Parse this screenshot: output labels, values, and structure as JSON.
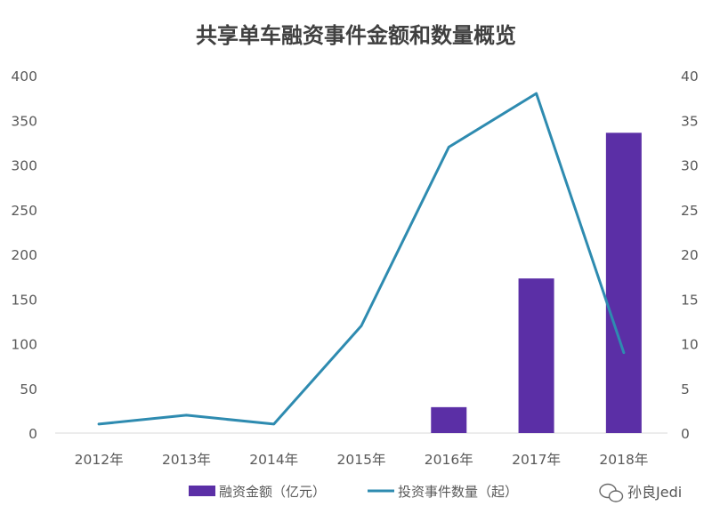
{
  "chart_data": {
    "type": "bar",
    "title": "共享单车融资事件金额和数量概览",
    "categories": [
      "2012年",
      "2013年",
      "2014年",
      "2015年",
      "2016年",
      "2017年",
      "2018年"
    ],
    "y_left": {
      "range": [
        0,
        400
      ],
      "ticks": [
        "0",
        "50",
        "100",
        "150",
        "200",
        "250",
        "300",
        "350",
        "400"
      ]
    },
    "y_right": {
      "range": [
        0,
        40
      ],
      "ticks": [
        "0",
        "5",
        "10",
        "15",
        "20",
        "25",
        "30",
        "35",
        "40"
      ]
    },
    "series": [
      {
        "name": "融资金额（亿元）",
        "type": "bar",
        "axis": "left",
        "color": "#5B2FA6",
        "values": [
          0,
          0,
          0,
          0,
          29,
          173,
          336
        ]
      },
      {
        "name": "投资事件数量（起）",
        "type": "line",
        "axis": "right",
        "color": "#2E8BB0",
        "values": [
          1,
          2,
          1,
          12,
          32,
          38,
          9
        ]
      }
    ],
    "legend_position": "bottom",
    "grid": false
  },
  "legend": {
    "bar_label": "融资金额（亿元）",
    "line_label": "投资事件数量（起）"
  },
  "watermark": {
    "text": "孙良Jedi",
    "icon": "wechat-icon"
  }
}
